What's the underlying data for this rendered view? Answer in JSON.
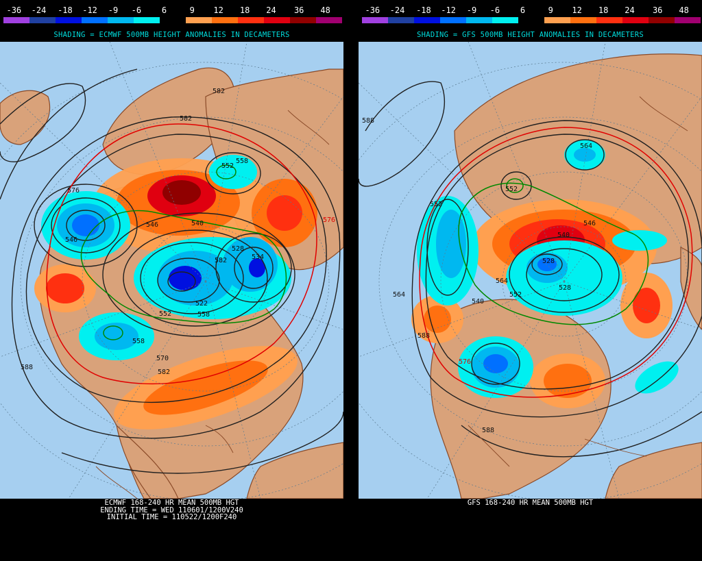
{
  "legend": {
    "ticks": [
      "-36",
      "-24",
      "-18",
      "-12",
      "-9",
      "-6",
      "6",
      "9",
      "12",
      "18",
      "24",
      "36",
      "48"
    ],
    "colors": [
      "#a040e0",
      "#2040a0",
      "#0010e0",
      "#0070ff",
      "#00b8f0",
      "#00f0f0",
      "#000000",
      "#ffa050",
      "#ff7010",
      "#ff3010",
      "#e00010",
      "#900000",
      "#a00070"
    ]
  },
  "palette": {
    "ocean": "#a6cff0",
    "land": "#d9a27a",
    "coast": "#8a4a28",
    "grid": "#5a7a90",
    "contour": "#202020",
    "contour_red": "#e00000",
    "contour_green": "#008800",
    "header_text": "#00dcdc"
  },
  "left": {
    "header": "SHADING = ECMWF 500MB HEIGHT ANOMALIES IN DECAMETERS",
    "footer": [
      "ECMWF 168-240 HR MEAN 500MB HGT",
      "ENDING TIME = WED 110601/1200V240",
      "INITIAL TIME = 110522/1200F240"
    ],
    "contour_labels": [
      "582",
      "582",
      "558",
      "576",
      "546",
      "552",
      "534",
      "528",
      "522",
      "540",
      "558",
      "546",
      "570",
      "582",
      "588",
      "558",
      "582",
      "576",
      "552"
    ]
  },
  "right": {
    "header": "SHADING = GFS 500MB HEIGHT ANOMALIES IN DECAMETERS",
    "footer": [
      "GFS 168-240 HR MEAN 500MB HGT"
    ],
    "contour_labels": [
      "588",
      "564",
      "552",
      "552",
      "564",
      "540",
      "528",
      "528",
      "552",
      "546",
      "540",
      "564",
      "576",
      "588",
      "588"
    ]
  }
}
